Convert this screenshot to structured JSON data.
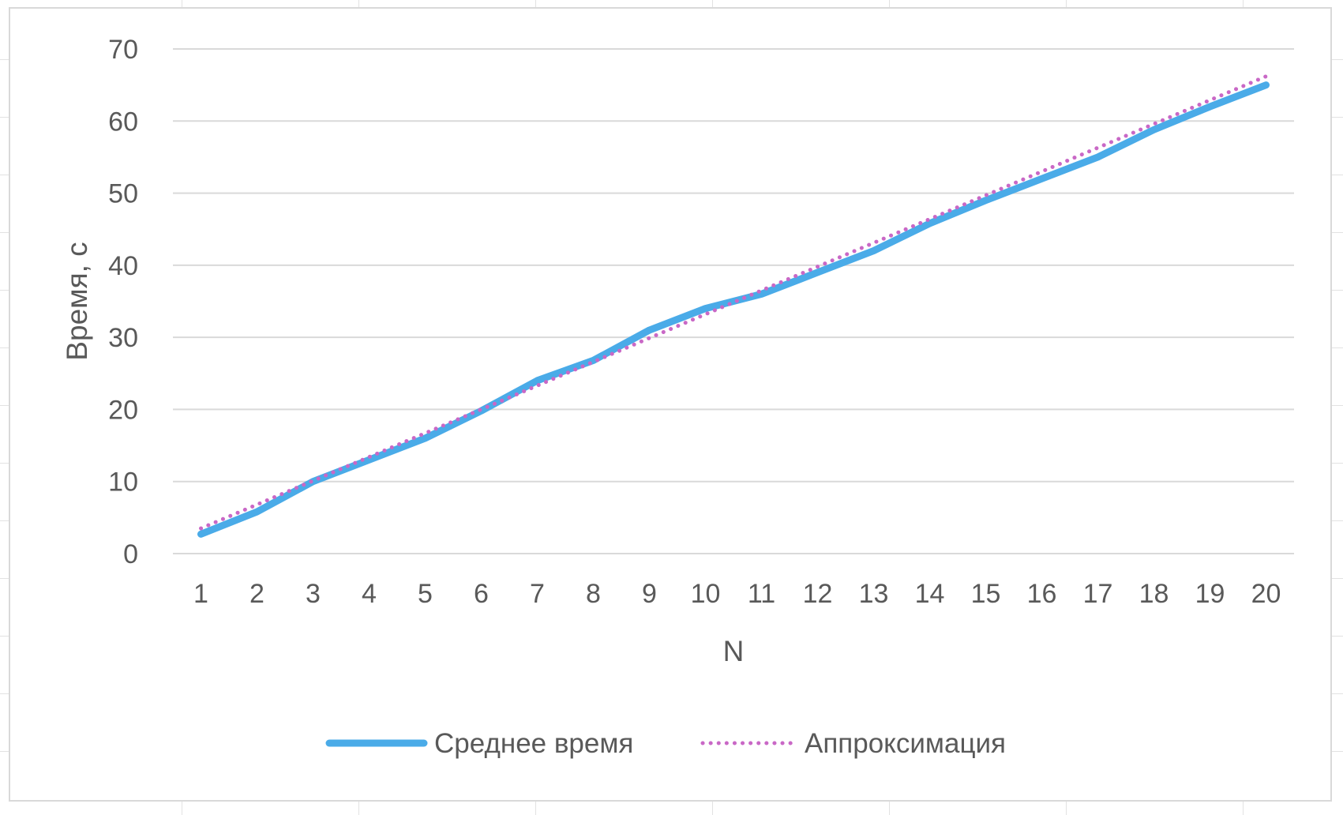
{
  "chart_data": {
    "type": "line",
    "categories": [
      "1",
      "2",
      "3",
      "4",
      "5",
      "6",
      "7",
      "8",
      "9",
      "10",
      "11",
      "12",
      "13",
      "14",
      "15",
      "16",
      "17",
      "18",
      "19",
      "20"
    ],
    "series": [
      {
        "name": "Среднее время",
        "values": [
          2.7,
          5.8,
          10,
          13,
          16,
          19.8,
          24,
          26.8,
          31,
          34,
          36,
          39,
          42,
          45.8,
          49,
          52,
          55,
          58.8,
          62,
          65
        ],
        "color": "#4aabe8",
        "style": "solid"
      },
      {
        "name": "Аппроксимация",
        "values": [
          3.5,
          6.8,
          10.1,
          13.4,
          16.7,
          20.0,
          23.3,
          26.6,
          29.9,
          33.2,
          36.5,
          39.8,
          43.1,
          46.4,
          49.7,
          53.0,
          56.3,
          59.6,
          62.9,
          66.2
        ],
        "color": "#c968c6",
        "style": "dotted"
      }
    ],
    "title": "",
    "xlabel": "N",
    "ylabel": "Время, с",
    "ylim": [
      0,
      70
    ],
    "yticks": [
      "0",
      "10",
      "20",
      "30",
      "40",
      "50",
      "60",
      "70"
    ],
    "grid": true,
    "legend_position": "bottom"
  }
}
